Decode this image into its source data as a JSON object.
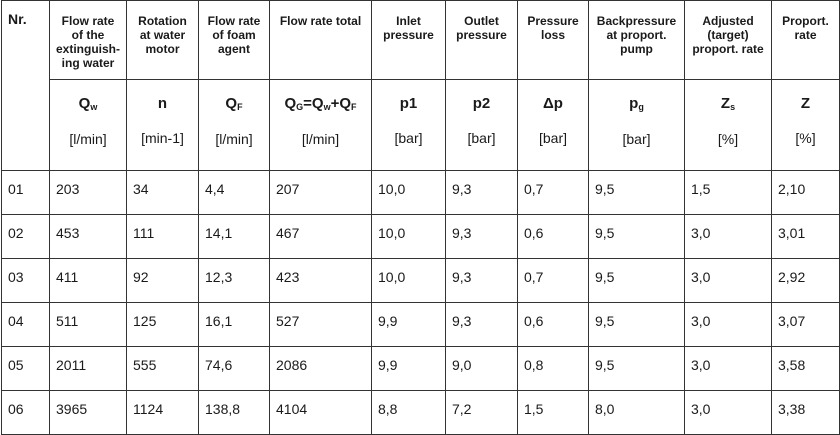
{
  "header": {
    "columns": [
      {
        "title": "Nr."
      },
      {
        "title": "Flow rate of the extinguish-ing water",
        "symbol": [
          "Q",
          {
            "t": "w",
            "sub": true
          }
        ],
        "unit": "[l/min]"
      },
      {
        "title": "Rotation at water motor",
        "symbol": [
          "n"
        ],
        "unit": "[min-1]"
      },
      {
        "title": "Flow rate of foam agent",
        "symbol": [
          "Q",
          {
            "t": "F",
            "sub": true
          }
        ],
        "unit": "[l/min]"
      },
      {
        "title": "Flow rate total",
        "symbol": [
          "Q",
          {
            "t": "G",
            "sub": true
          },
          "=Q",
          {
            "t": "w",
            "sub": true
          },
          "+Q",
          {
            "t": "F",
            "sub": true
          }
        ],
        "unit": "[l/min]"
      },
      {
        "title": "Inlet pressure",
        "symbol": [
          "p1"
        ],
        "unit": "[bar]"
      },
      {
        "title": "Outlet pressure",
        "symbol": [
          "p2"
        ],
        "unit": "[bar]"
      },
      {
        "title": "Pressure loss",
        "symbol": [
          "Δp"
        ],
        "unit": "[bar]"
      },
      {
        "title": "Backpressure at proport. pump",
        "symbol": [
          "p",
          {
            "t": "g",
            "sub": true
          }
        ],
        "unit": "[bar]"
      },
      {
        "title": "Adjusted (target) proport. rate",
        "symbol": [
          "Z",
          {
            "t": "s",
            "sub": true
          }
        ],
        "unit": "[%]"
      },
      {
        "title": "Proport. rate",
        "symbol": [
          "Z"
        ],
        "unit": "[%]"
      }
    ]
  },
  "table": {
    "rows": [
      [
        "01",
        "203",
        "34",
        "4,4",
        "207",
        "10,0",
        "9,3",
        "0,7",
        "9,5",
        "1,5",
        "2,10"
      ],
      [
        "02",
        "453",
        "111",
        "14,1",
        "467",
        "10,0",
        "9,3",
        "0,6",
        "9,5",
        "3,0",
        "3,01"
      ],
      [
        "03",
        "411",
        "92",
        "12,3",
        "423",
        "10,0",
        "9,3",
        "0,7",
        "9,5",
        "3,0",
        "2,92"
      ],
      [
        "04",
        "511",
        "125",
        "16,1",
        "527",
        "9,9",
        "9,3",
        "0,6",
        "9,5",
        "3,0",
        "3,07"
      ],
      [
        "05",
        "2011",
        "555",
        "74,6",
        "2086",
        "9,9",
        "9,0",
        "0,8",
        "9,5",
        "3,0",
        "3,58"
      ],
      [
        "06",
        "3965",
        "1124",
        "138,8",
        "4104",
        "8,8",
        "7,2",
        "1,5",
        "8,0",
        "3,0",
        "3,38"
      ]
    ]
  }
}
